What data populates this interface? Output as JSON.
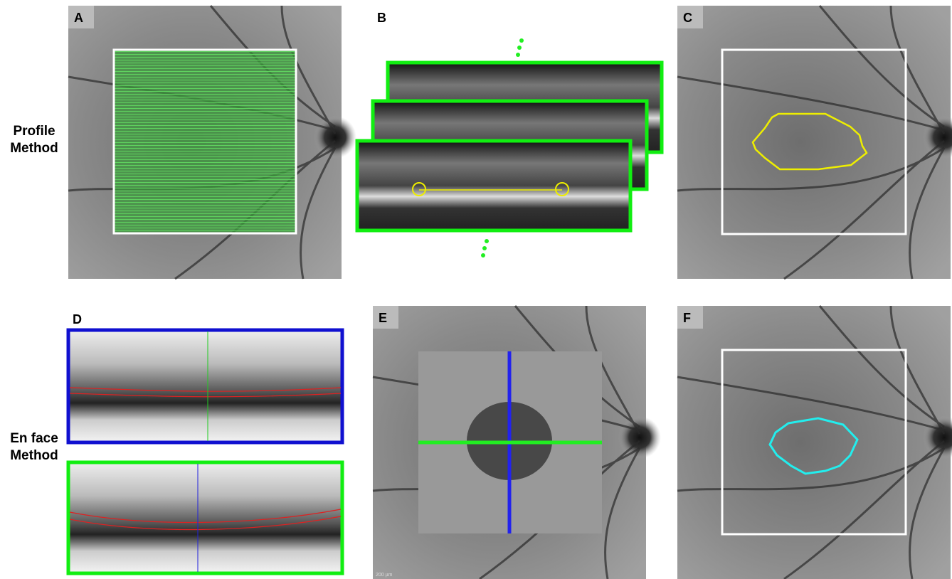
{
  "panels": [
    {
      "label": "A"
    },
    {
      "label": "B"
    },
    {
      "label": "C"
    },
    {
      "label": "D"
    },
    {
      "label": "E"
    },
    {
      "label": "F"
    }
  ],
  "row_labels": [
    {
      "lines": [
        "Profile",
        "Method"
      ]
    },
    {
      "lines": [
        "En face",
        "Method"
      ]
    }
  ],
  "scale_bar": "200 µm"
}
